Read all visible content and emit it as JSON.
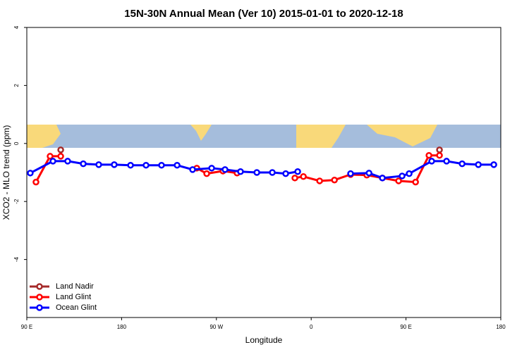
{
  "chart_data": {
    "type": "line",
    "title": "15N-30N Annual Mean (Ver 10)   2015-01-01 to 2020-12-18",
    "x_label": "Longitude",
    "y_label": "XCO2 - MLO trend (ppm)",
    "xlim": [
      90,
      540
    ],
    "xticks": [
      {
        "value": 90,
        "label": "90 E"
      },
      180,
      {
        "value": 270,
        "label": "90 W"
      },
      {
        "value": 360,
        "label": "0"
      },
      {
        "value": 450,
        "label": "90 E"
      },
      {
        "value": 540,
        "label": "180"
      }
    ],
    "ylim": [
      -6,
      4
    ],
    "yticks": [
      -4,
      -2,
      0,
      2,
      4
    ],
    "legend": "bottom-left",
    "series": [
      {
        "name": "Land Nadir",
        "color": "#a52a2a",
        "x": [
          122.2,
          481.8
        ],
        "values": [
          -0.22,
          -0.22
        ]
      },
      {
        "name": "Land Glint",
        "color": "#ff0000",
        "x": [
          98.7,
          112.1,
          122.2,
          251.4,
          260.8,
          276.2,
          289.6,
          344.5,
          352.6,
          368,
          382.1,
          397.4,
          412.8,
          427.6,
          443,
          459.1,
          471.8,
          481.8
        ],
        "values": [
          -1.33,
          -0.44,
          -0.44,
          -0.85,
          -1.04,
          -0.95,
          -1.02,
          -1.19,
          -1.14,
          -1.29,
          -1.26,
          -1.07,
          -1.09,
          -1.19,
          -1.29,
          -1.33,
          -0.41,
          -0.41
        ]
      },
      {
        "name": "Ocean Glint",
        "color": "#0000ff",
        "x": [
          93.3,
          114.8,
          128.8,
          143.6,
          158.3,
          173,
          188.5,
          203.2,
          217.9,
          232.7,
          247.4,
          265.5,
          278.2,
          292.9,
          308.4,
          323.1,
          335.8,
          347.2,
          397.4,
          414.9,
          427.6,
          446.3,
          453,
          474.4,
          488.5,
          503.3,
          518.7,
          533.4
        ],
        "values": [
          -1.02,
          -0.61,
          -0.61,
          -0.7,
          -0.73,
          -0.73,
          -0.75,
          -0.75,
          -0.75,
          -0.75,
          -0.9,
          -0.85,
          -0.9,
          -0.97,
          -1.0,
          -1.0,
          -1.04,
          -0.97,
          -1.04,
          -1.02,
          -1.19,
          -1.12,
          -1.04,
          -0.61,
          -0.61,
          -0.7,
          -0.73,
          -0.73
        ]
      }
    ]
  }
}
